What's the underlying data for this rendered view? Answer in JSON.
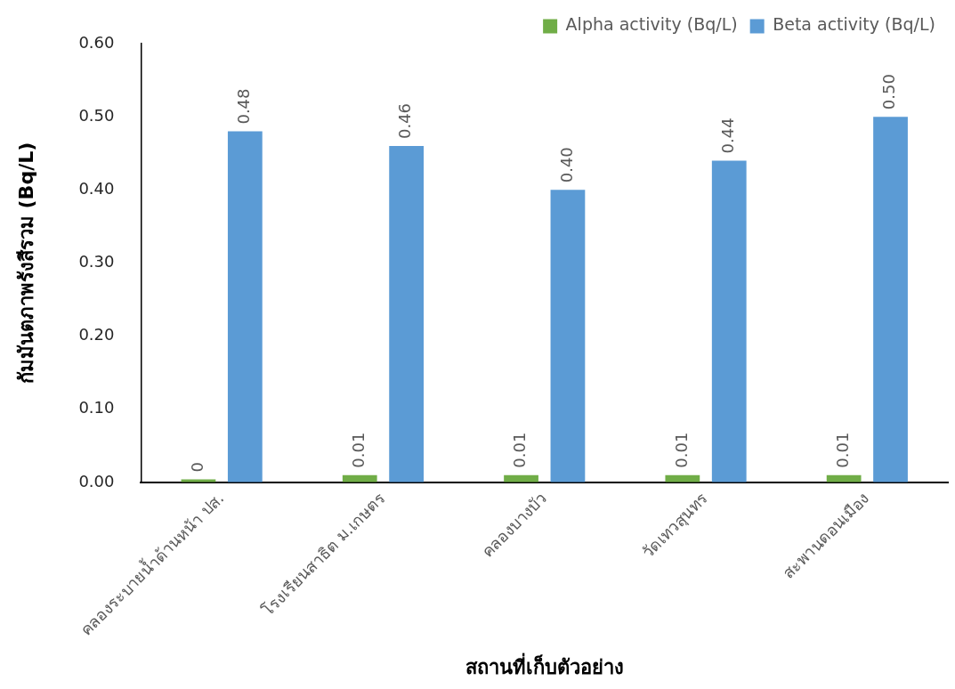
{
  "chart_data": {
    "type": "bar",
    "categories": [
      "คลองระบายน้ำด้านหน้า ปส.",
      "โรงเรียนสาธิต ม.เกษตร",
      "คลองบางบัว",
      "วัดเทวสุนทร",
      "สะพานดอนเมือง"
    ],
    "series": [
      {
        "name": "Alpha activity (Bq/L)",
        "color": "#70ad47",
        "values": [
          0.004,
          0.01,
          0.01,
          0.01,
          0.01
        ],
        "value_labels": [
          "0",
          "0.01",
          "0.01",
          "0.01",
          "0.01"
        ]
      },
      {
        "name": "Beta activity (Bq/L)",
        "color": "#5b9bd5",
        "values": [
          0.48,
          0.46,
          0.4,
          0.44,
          0.5
        ],
        "value_labels": [
          "0.48",
          "0.46",
          "0.40",
          "0.44",
          "0.50"
        ]
      }
    ],
    "xlabel": "สถานที่เก็บตัวอย่าง",
    "ylabel": "กัมมันตภาพรังสีรวม (Bq/L)",
    "ylim": [
      0,
      0.6
    ],
    "yticks": [
      {
        "value": 0,
        "label": "0.00"
      },
      {
        "value": 0.1,
        "label": "0.10"
      },
      {
        "value": 0.2,
        "label": "0.20"
      },
      {
        "value": 0.3,
        "label": "0.30"
      },
      {
        "value": 0.4,
        "label": "0.40"
      },
      {
        "value": 0.5,
        "label": "0.50"
      },
      {
        "value": 0.6,
        "label": "0.60"
      }
    ],
    "legend": "top right"
  }
}
